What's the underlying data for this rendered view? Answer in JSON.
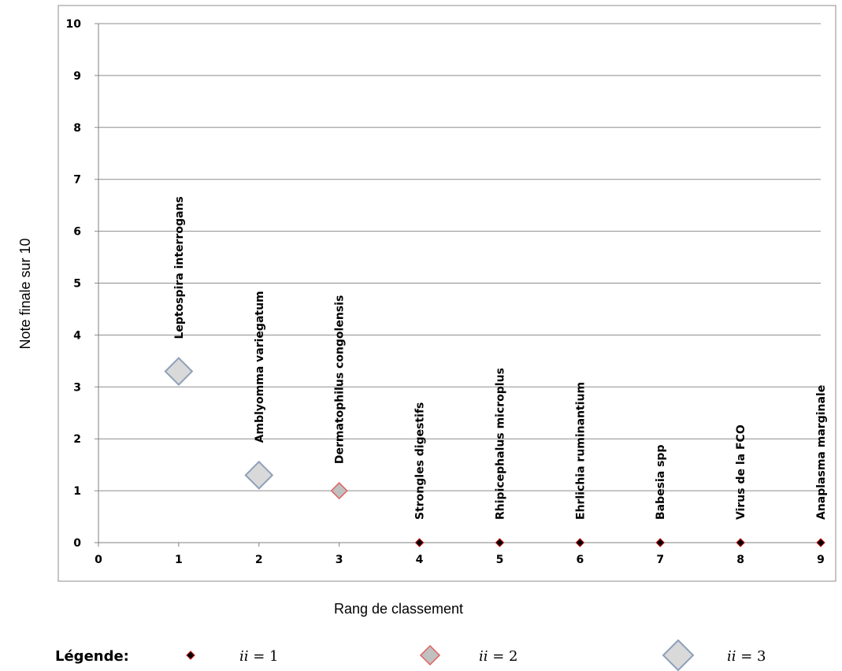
{
  "chart_data": {
    "type": "scatter",
    "title": "",
    "xlabel": "Rang de classement",
    "ylabel": "Note finale sur 10",
    "xlim": [
      0,
      9
    ],
    "ylim": [
      0,
      10
    ],
    "x_ticks": [
      "0",
      "1",
      "2",
      "3",
      "4",
      "5",
      "6",
      "7",
      "8",
      "9"
    ],
    "y_ticks": [
      "0",
      "1",
      "2",
      "3",
      "4",
      "5",
      "6",
      "7",
      "8",
      "9",
      "10"
    ],
    "grid": "horizontal",
    "points": [
      {
        "x": 1,
        "y": 3.3,
        "label": "Leptospira interrogans",
        "group": 3
      },
      {
        "x": 2,
        "y": 1.3,
        "label": "Amblyomma variegatum",
        "group": 3
      },
      {
        "x": 3,
        "y": 1,
        "label": "Dermatophilus congolensis",
        "group": 2
      },
      {
        "x": 4,
        "y": 0,
        "label": "Strongles  digestifs",
        "group": 1
      },
      {
        "x": 5,
        "y": 0,
        "label": "Rhipicephalus  microplus",
        "group": 1
      },
      {
        "x": 6,
        "y": 0,
        "label": "Ehrlichia  ruminantium",
        "group": 1
      },
      {
        "x": 7,
        "y": 0,
        "label": "Babesia spp",
        "group": 1
      },
      {
        "x": 8,
        "y": 0,
        "label": "Virus de la FCO",
        "group": 1
      },
      {
        "x": 9,
        "y": 0,
        "label": "Anaplasma   marginale",
        "group": 1
      }
    ],
    "legend": {
      "title": "Légende:",
      "placement": "bottom",
      "entries": [
        {
          "group": 1,
          "var": "ii",
          "text": " = 1"
        },
        {
          "group": 2,
          "var": "ii",
          "text": " = 2"
        },
        {
          "group": 3,
          "var": "ii",
          "text": " = 3"
        }
      ]
    },
    "colors": {
      "g1_fill": "#000000",
      "g1_stroke": "#c00000",
      "g2_fill": "#c0c0c0",
      "g2_stroke": "#e06060",
      "g3_fill": "#d9d9d9",
      "g3_stroke": "#8ea0b8",
      "grid": "#8c8c8c",
      "frame": "#8c8c8c"
    }
  }
}
